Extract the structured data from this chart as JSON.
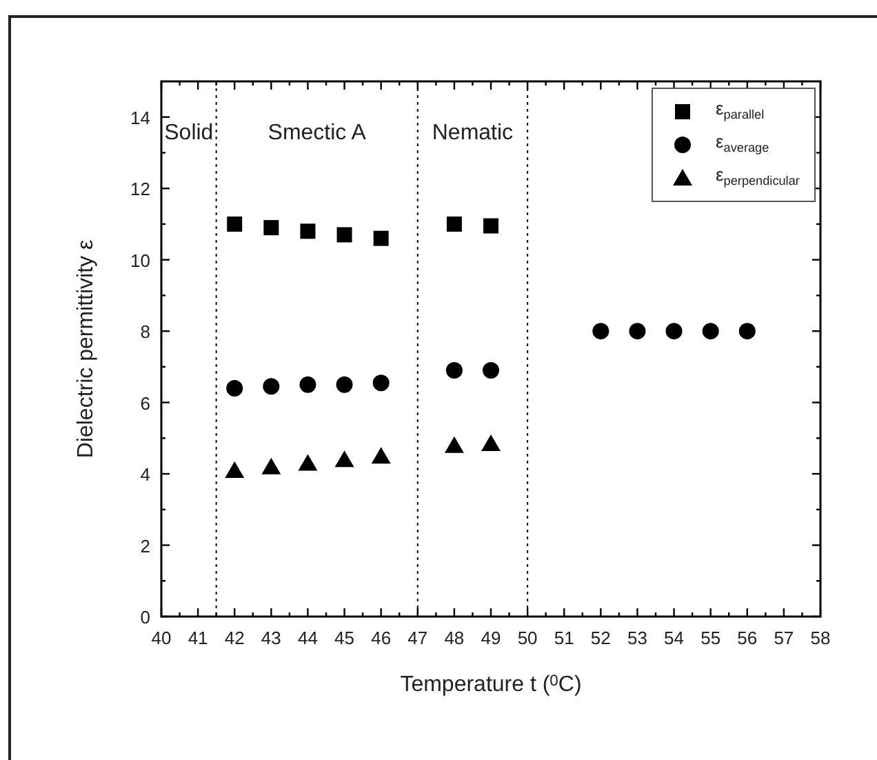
{
  "chart_data": {
    "type": "scatter",
    "xlabel": "Temperature t ($^{0}$C)",
    "ylabel": "Dielectric permittivity ε",
    "xlim": [
      40,
      58
    ],
    "ylim": [
      0,
      15
    ],
    "xticks": [
      40,
      {
        "value": 40.5,
        "label": null
      },
      41,
      {
        "value": 41.5,
        "label": null
      },
      42,
      {
        "value": 42.5,
        "label": null
      },
      43,
      {
        "value": 43.5,
        "label": null
      },
      44,
      {
        "value": 44.5,
        "label": null
      },
      45,
      {
        "value": 45.5,
        "label": null
      },
      46,
      {
        "value": 46.5,
        "label": null
      },
      47,
      {
        "value": 47.5,
        "label": null
      },
      48,
      {
        "value": 48.5,
        "label": null
      },
      49,
      {
        "value": 49.5,
        "label": null
      },
      50,
      {
        "value": 50.5,
        "label": null
      },
      51,
      {
        "value": 51.5,
        "label": null
      },
      52,
      {
        "value": 52.5,
        "label": null
      },
      53,
      {
        "value": 53.5,
        "label": null
      },
      54,
      {
        "value": 54.5,
        "label": null
      },
      55,
      {
        "value": 55.5,
        "label": null
      },
      56,
      {
        "value": 56.5,
        "label": null
      },
      57,
      {
        "value": 57.5,
        "label": null
      },
      58
    ],
    "yticks": [
      0,
      {
        "value": 1,
        "label": null
      },
      2,
      {
        "value": 3,
        "label": null
      },
      4,
      {
        "value": 5,
        "label": null
      },
      6,
      {
        "value": 7,
        "label": null
      },
      8,
      {
        "value": 9,
        "label": null
      },
      10,
      {
        "value": 11,
        "label": null
      },
      12,
      {
        "value": 13,
        "label": null
      },
      14
    ],
    "series": [
      {
        "name": "ε$_{parallel}$",
        "color": "#000000",
        "marker": "square",
        "x": [
          42,
          43,
          44,
          45,
          46,
          48,
          49
        ],
        "values": [
          11.0,
          10.9,
          10.8,
          10.7,
          10.6,
          11.0,
          10.95
        ]
      },
      {
        "name": "ε$_{average}$",
        "color": "#000000",
        "marker": "circle",
        "x": [
          42,
          43,
          44,
          45,
          46,
          48,
          49,
          52,
          53,
          54,
          55,
          56
        ],
        "values": [
          6.4,
          6.45,
          6.5,
          6.5,
          6.55,
          6.9,
          6.9,
          8,
          8,
          8,
          8,
          8
        ]
      },
      {
        "name": "ε$_{perpendicular}$",
        "color": "#000000",
        "marker": "triangle",
        "x": [
          42,
          43,
          44,
          45,
          46,
          48,
          49
        ],
        "values": [
          4.1,
          4.2,
          4.3,
          4.4,
          4.5,
          4.8,
          4.85
        ]
      }
    ],
    "ref_lines": [
      {
        "axis": "x",
        "value": 41.5,
        "line_style": "dotted"
      },
      {
        "axis": "x",
        "value": 47,
        "line_style": "dotted"
      },
      {
        "axis": "x",
        "value": 50,
        "line_style": "dotted"
      }
    ],
    "annotations": [
      "Solid",
      "Smectic A",
      "Nematic"
    ],
    "legend": "top right",
    "grid": false
  }
}
